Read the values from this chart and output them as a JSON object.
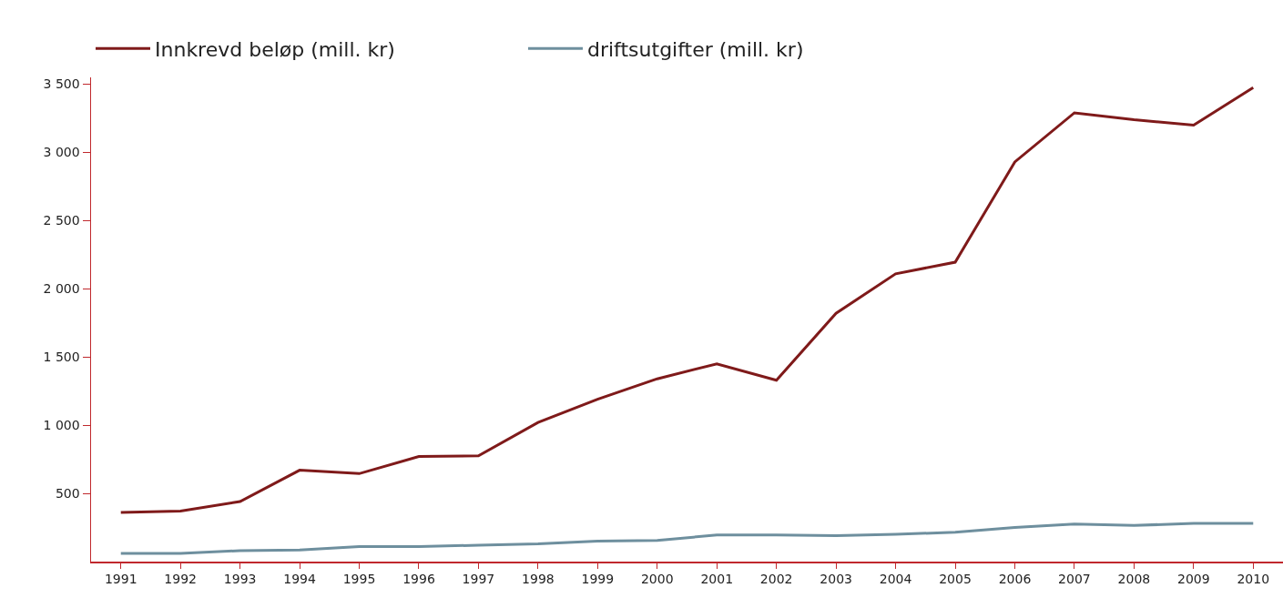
{
  "chart_data": {
    "type": "line",
    "x": [
      1991,
      1992,
      1993,
      1994,
      1995,
      1996,
      1997,
      1998,
      1999,
      2000,
      2001,
      2002,
      2003,
      2004,
      2005,
      2006,
      2007,
      2008,
      2009,
      2010
    ],
    "series": [
      {
        "name": "Innkrevd beløp (mill. kr)",
        "color": "#7f1a1a",
        "values": [
          360,
          370,
          440,
          670,
          645,
          770,
          775,
          1020,
          1190,
          1340,
          1450,
          1330,
          1820,
          2110,
          2195,
          2930,
          3290,
          3240,
          3200,
          3475
        ]
      },
      {
        "name": "driftsutgifter (mill. kr)",
        "color": "#6e8f9e",
        "values": [
          60,
          60,
          80,
          85,
          110,
          110,
          120,
          130,
          150,
          155,
          195,
          195,
          190,
          200,
          215,
          250,
          275,
          265,
          280,
          280
        ]
      }
    ],
    "xlim": [
      1990.5,
      2010.5
    ],
    "xticks": [
      1991,
      1992,
      1993,
      1994,
      1995,
      1996,
      1997,
      1998,
      1999,
      2000,
      2001,
      2002,
      2003,
      2004,
      2005,
      2006,
      2007,
      2008,
      2009,
      2010
    ],
    "ylim": [
      0,
      3550
    ],
    "yticks": [
      {
        "value": 500,
        "label": "500"
      },
      {
        "value": 1000,
        "label": "1 000"
      },
      {
        "value": 1500,
        "label": "1 500"
      },
      {
        "value": 2000,
        "label": "2 000"
      },
      {
        "value": 2500,
        "label": "2 500"
      },
      {
        "value": 3000,
        "label": "3 000"
      },
      {
        "value": 3500,
        "label": "3 500"
      }
    ],
    "grid": false,
    "legend": "top left",
    "marker": "none",
    "line_style": "solid"
  }
}
